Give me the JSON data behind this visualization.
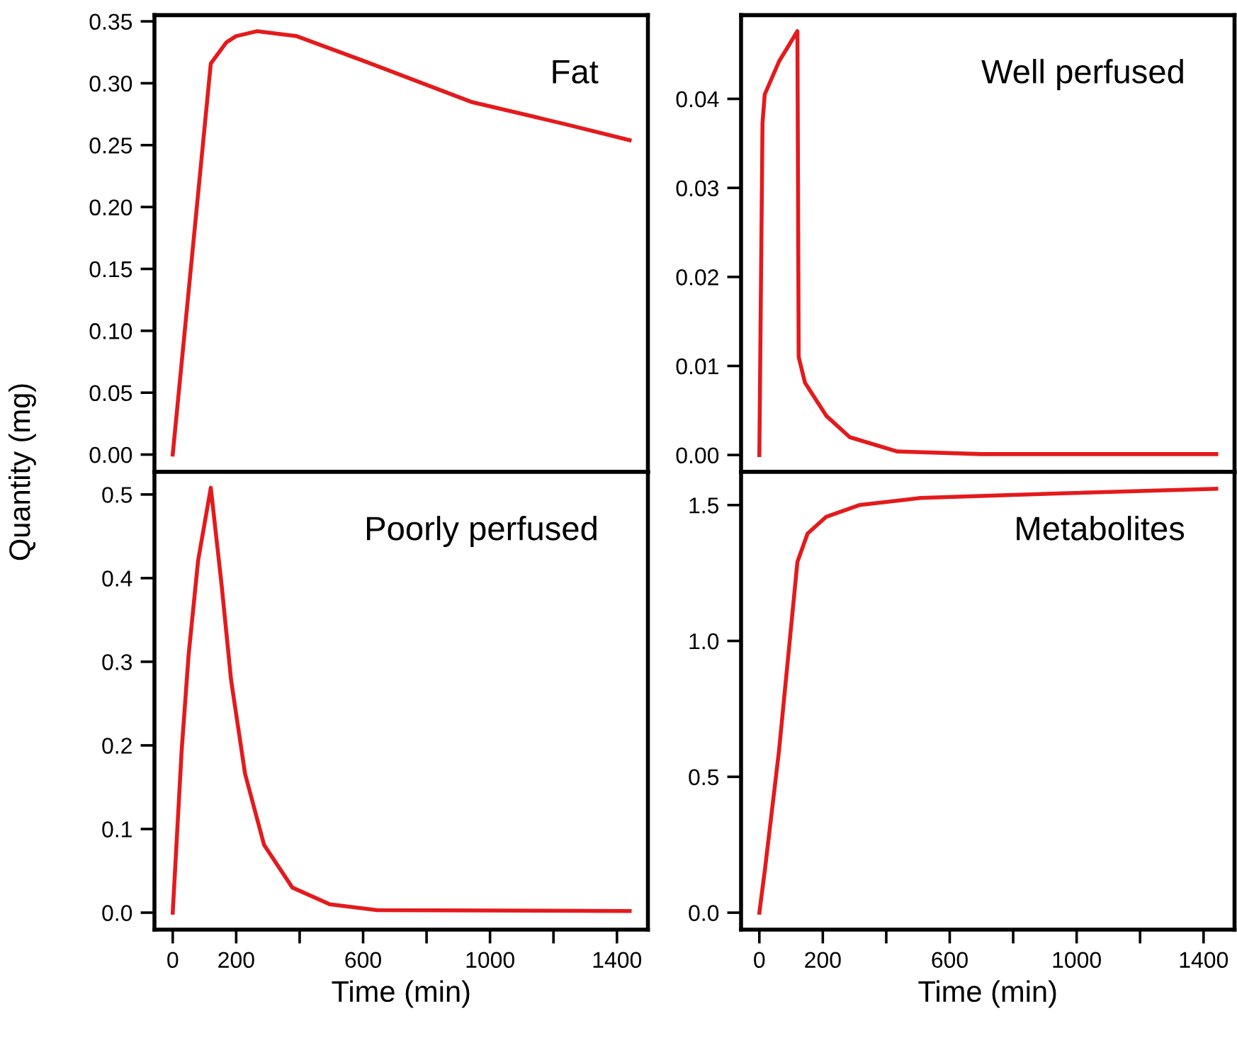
{
  "chart_data": [
    {
      "type": "line",
      "ylabel": "Quantity (mg)",
      "annotations": [
        "Fat"
      ],
      "tick_labels": "y",
      "x": [
        0,
        120,
        169,
        199,
        265,
        391,
        644,
        940,
        1236,
        1440
      ],
      "series": [
        {
          "color": "#e41a1c",
          "values": [
            0,
            0.316,
            0.333,
            0.338,
            0.342,
            0.338,
            0.314,
            0.285,
            0.267,
            0.254
          ]
        }
      ],
      "xlim": [
        -57.6,
        1497.6
      ],
      "xticks": [
        0,
        200,
        {
          "value": 400,
          "label": null
        },
        600,
        {
          "value": 800,
          "label": null
        },
        1000,
        {
          "value": 1200,
          "label": null
        },
        1400
      ],
      "ylim": [
        -0.014,
        0.355
      ],
      "yticks": [
        {
          "value": 0,
          "label": "0.00"
        },
        0.05,
        {
          "value": 0.1,
          "label": "0.10"
        },
        0.15,
        {
          "value": 0.2,
          "label": "0.20"
        },
        0.25,
        {
          "value": 0.3,
          "label": "0.30"
        },
        0.35
      ],
      "grid": false,
      "legend": false,
      "marker": "none",
      "line_style": "solid"
    },
    {
      "type": "line",
      "annotations": [
        "Well perfused"
      ],
      "tick_labels": "y",
      "x": [
        0,
        10,
        17,
        62,
        120,
        124,
        144,
        211,
        285,
        434,
        700,
        1440
      ],
      "series": [
        {
          "color": "#e41a1c",
          "values": [
            0,
            0.0373,
            0.0405,
            0.0442,
            0.0476,
            0.011,
            0.0081,
            0.0044,
            0.002,
            0.0004,
            0.0001,
            0.0001
          ]
        }
      ],
      "xlim": [
        -57.6,
        1497.6
      ],
      "xticks": [
        0,
        200,
        {
          "value": 400,
          "label": null
        },
        600,
        {
          "value": 800,
          "label": null
        },
        1000,
        {
          "value": 1200,
          "label": null
        },
        1400
      ],
      "ylim": [
        -0.0019,
        0.0494
      ],
      "yticks": [
        {
          "value": 0,
          "label": "0.00"
        },
        0.01,
        0.02,
        0.03,
        0.04
      ],
      "grid": false,
      "legend": false,
      "marker": "none",
      "line_style": "solid"
    },
    {
      "type": "line",
      "xlabel": "Time (min)",
      "annotations": [
        "Poorly perfused"
      ],
      "x": [
        0,
        28,
        50,
        80,
        120,
        154,
        184,
        228,
        288,
        377,
        495,
        644,
        1440
      ],
      "series": [
        {
          "color": "#e41a1c",
          "values": [
            0,
            0.193,
            0.308,
            0.421,
            0.508,
            0.392,
            0.278,
            0.166,
            0.081,
            0.03,
            0.01,
            0.003,
            0.002
          ]
        }
      ],
      "xlim": [
        -57.6,
        1497.6
      ],
      "xticks": [
        0,
        200,
        {
          "value": 400,
          "label": null
        },
        600,
        {
          "value": 800,
          "label": null
        },
        1000,
        {
          "value": 1200,
          "label": null
        },
        1400
      ],
      "ylim": [
        -0.0203,
        0.527
      ],
      "yticks": [
        {
          "value": 0,
          "label": "0.0"
        },
        0.1,
        0.2,
        0.3,
        0.4,
        0.5
      ],
      "grid": false,
      "legend": false,
      "marker": "none",
      "line_style": "solid"
    },
    {
      "type": "line",
      "xlabel": "Time (min)",
      "annotations": [
        "Metabolites"
      ],
      "x": [
        0,
        18,
        62,
        120,
        152,
        211,
        315,
        508,
        954,
        1440
      ],
      "series": [
        {
          "color": "#e41a1c",
          "values": [
            0,
            0.162,
            0.596,
            1.291,
            1.395,
            1.457,
            1.5,
            1.526,
            1.543,
            1.56
          ]
        }
      ],
      "xlim": [
        -57.6,
        1497.6
      ],
      "xticks": [
        0,
        200,
        {
          "value": 400,
          "label": null
        },
        600,
        {
          "value": 800,
          "label": null
        },
        1000,
        {
          "value": 1200,
          "label": null
        },
        1400
      ],
      "ylim": [
        -0.0624,
        1.622
      ],
      "yticks": [
        {
          "value": 0,
          "label": "0.0"
        },
        0.5,
        {
          "value": 1.0,
          "label": "1.0"
        },
        1.5
      ],
      "grid": false,
      "legend": false,
      "marker": "none",
      "line_style": "solid"
    }
  ]
}
